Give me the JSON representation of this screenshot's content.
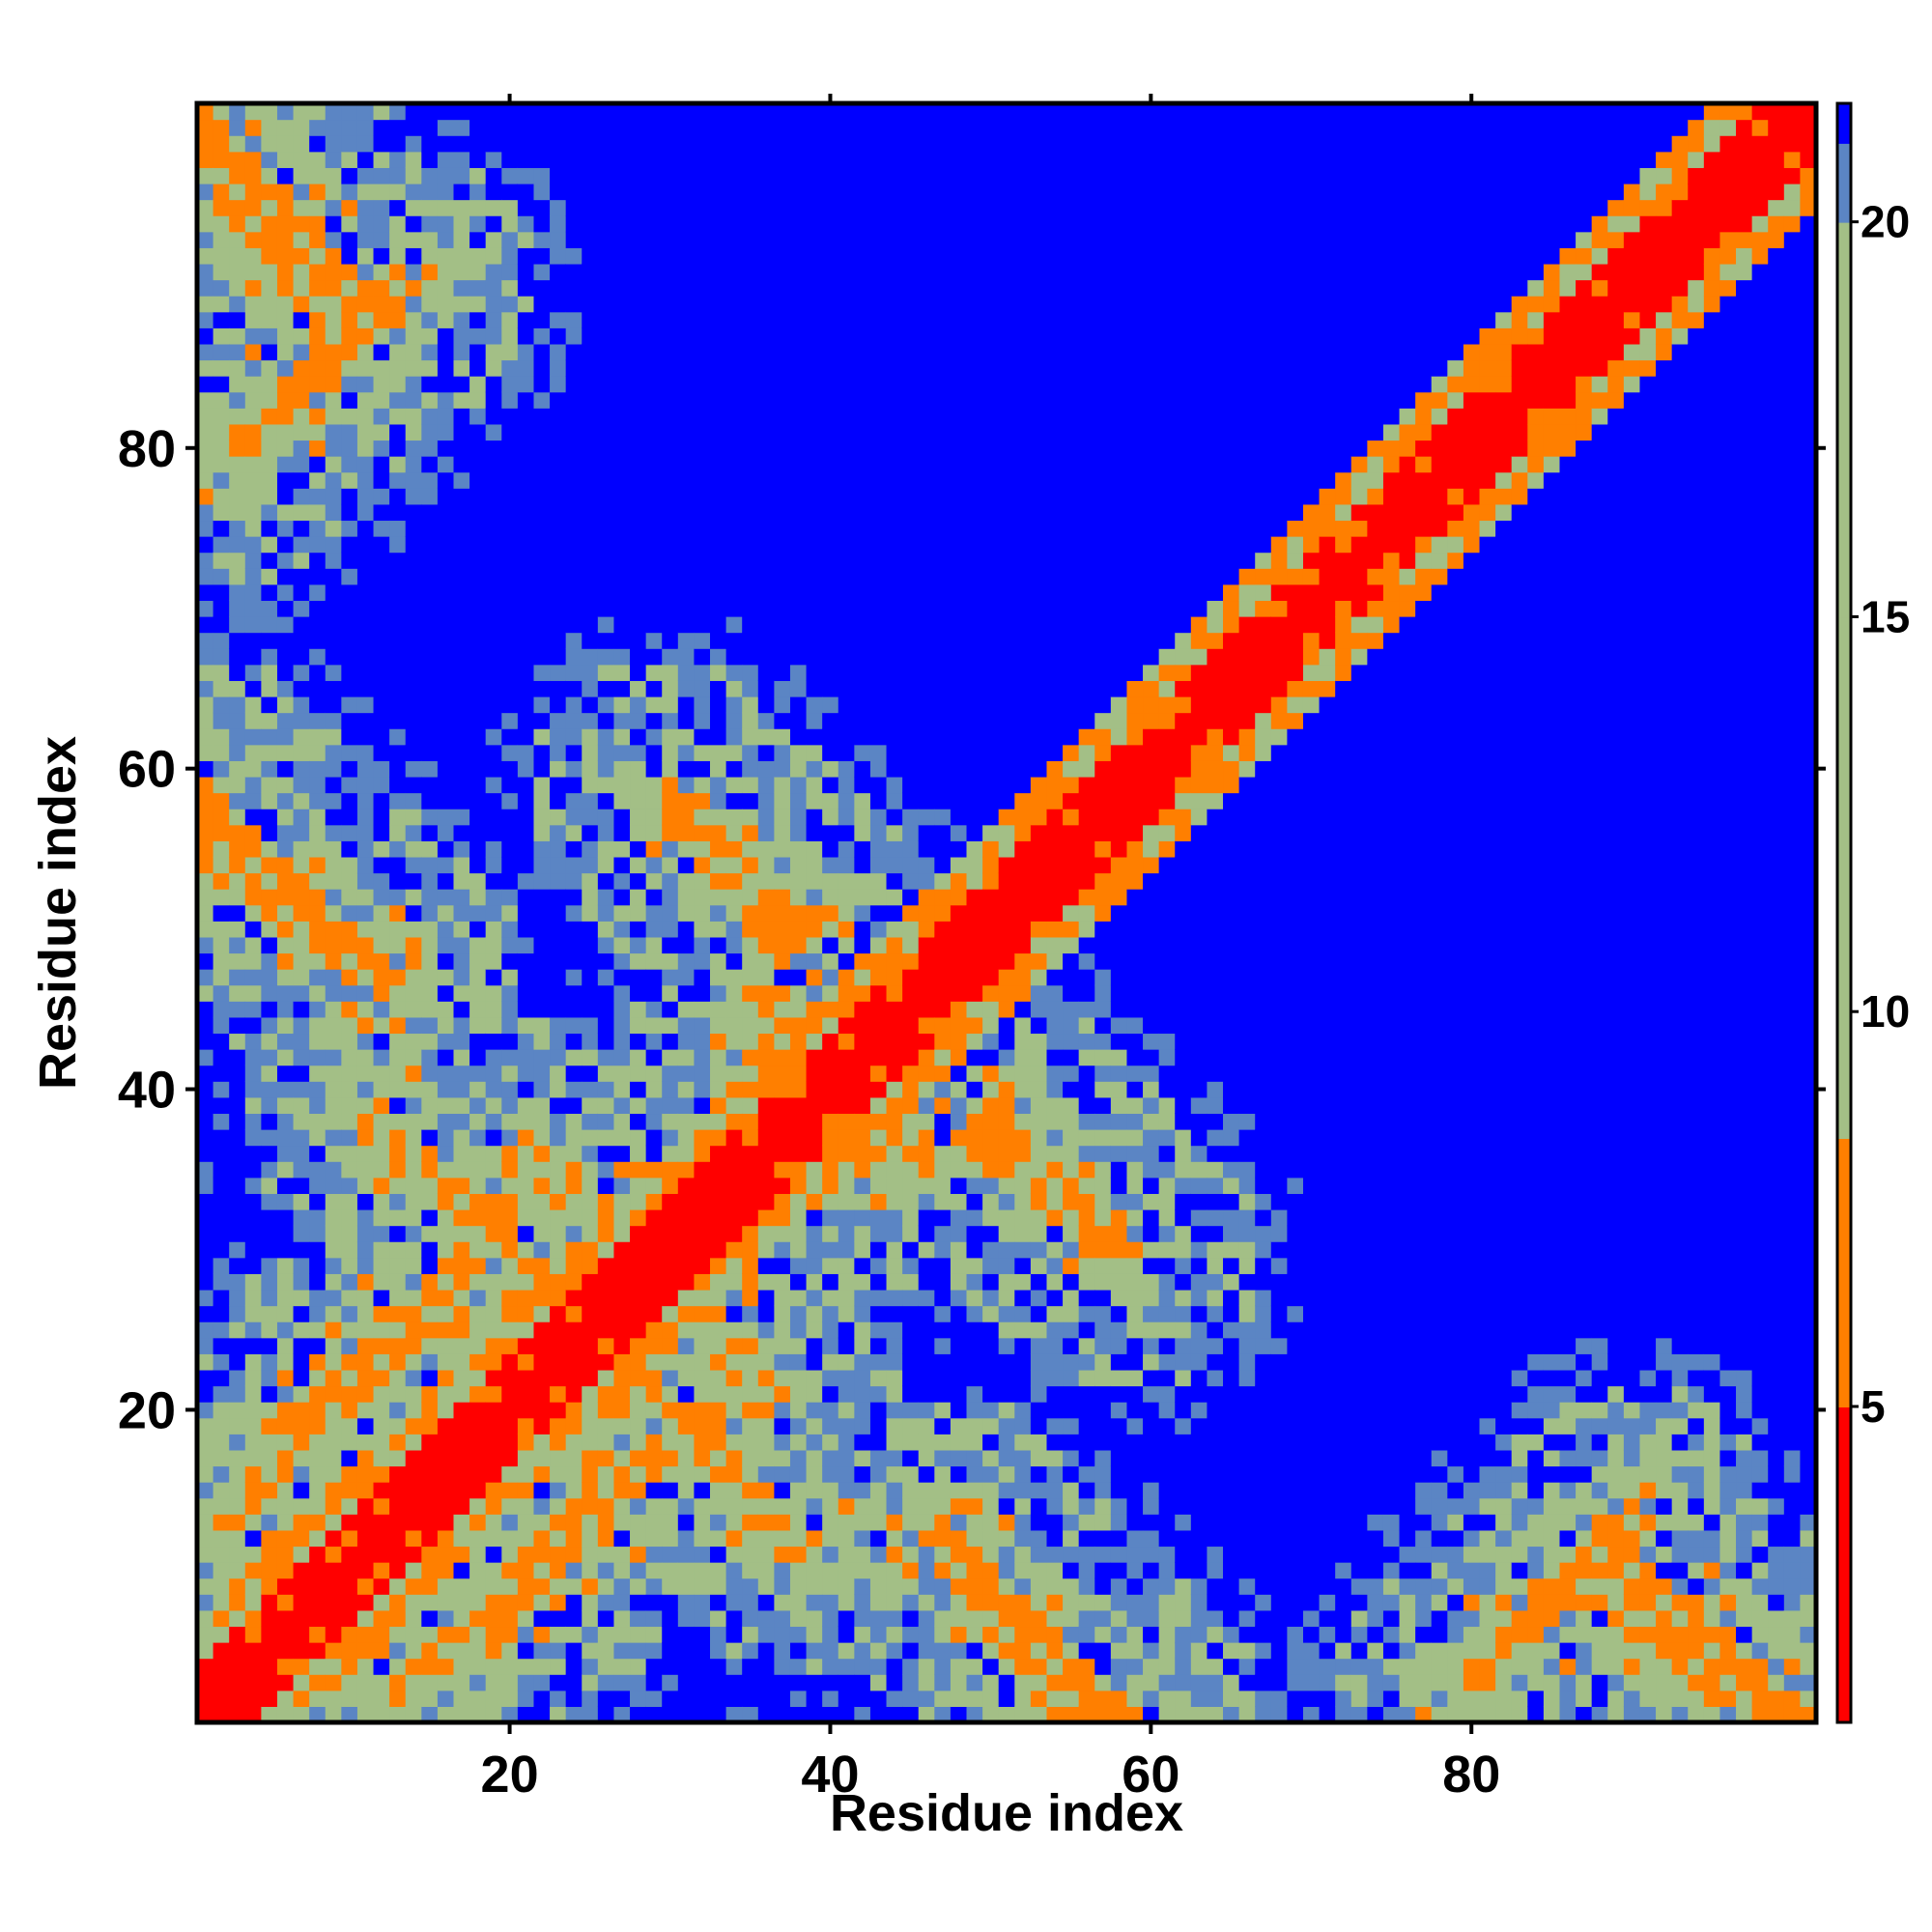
{
  "chart_data": {
    "type": "heatmap",
    "title": "",
    "xlabel": "Residue index",
    "ylabel": "Residue index",
    "n_residues": 101,
    "xlim": [
      1,
      101
    ],
    "ylim": [
      1,
      101
    ],
    "x_ticks": [
      "20",
      "40",
      "60",
      "80"
    ],
    "x_tick_values": [
      20,
      40,
      60,
      80
    ],
    "y_ticks": [
      "20",
      "40",
      "60",
      "80"
    ],
    "y_tick_values": [
      20,
      40,
      60,
      80
    ],
    "colorbar": {
      "ticks": [
        "5",
        "10",
        "15",
        "20"
      ],
      "tick_values": [
        5,
        10,
        15,
        20
      ],
      "range": [
        1,
        21.5
      ]
    },
    "grid": false,
    "matrix": "symmetric pairwise distance map (Å-like); diagonal band near 1-4; off-diagonal contact bands at residue pairs (1-12,88-100), (20-32,1-12), (26-38,10-22), (20-28,33-40), (45-60,25-37), (1-12,50-62), (27-38,48-59), (80-90,1-13); large blue (>20) domains elsewhere",
    "colors": {
      "near": "#ff0000",
      "contact": "#ff7f00",
      "mid": "#a3bf86",
      "far_mid": "#5b85c4",
      "far": "#0000ff"
    }
  }
}
